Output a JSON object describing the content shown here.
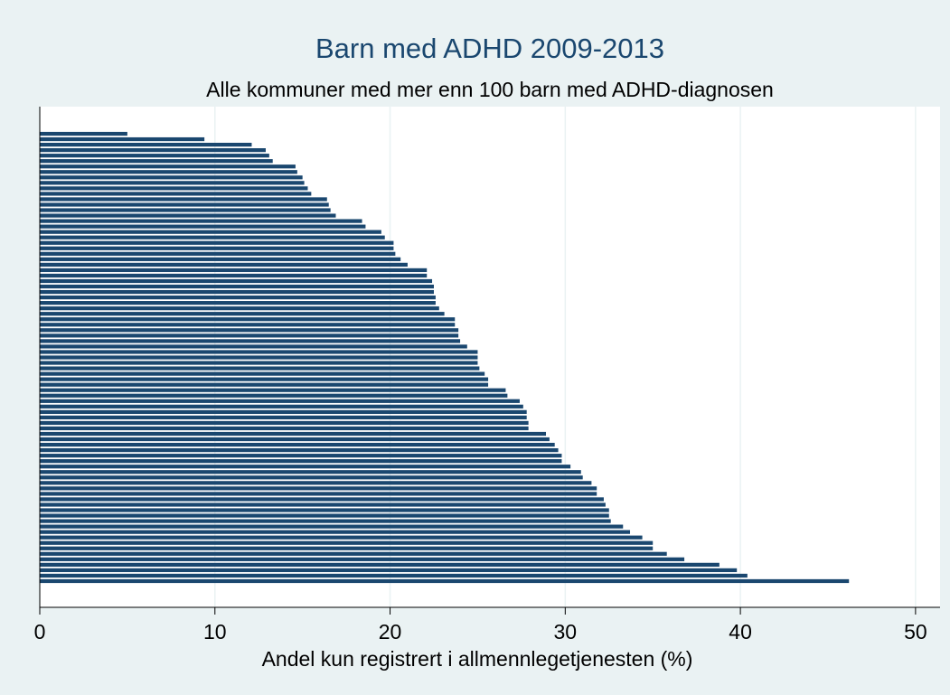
{
  "chart_data": {
    "type": "barh",
    "title": "Barn med ADHD 2009-2013",
    "subtitle": "Alle kommuner med mer enn 100 barn med ADHD-diagnosen",
    "x_label": "Andel kun registrert i allmennlegetjenesten (%)",
    "categories": [
      null,
      null,
      null,
      null,
      null,
      null,
      null,
      null,
      null,
      null,
      null,
      null,
      null,
      null,
      null,
      null,
      null,
      null,
      null,
      null,
      null,
      null,
      null,
      null,
      null,
      null,
      null,
      null,
      null,
      null,
      null,
      null,
      null,
      null,
      null,
      null,
      null,
      null,
      null,
      null,
      null,
      null,
      null,
      null,
      null,
      null,
      null,
      null,
      null,
      null,
      null,
      null,
      null,
      null,
      null,
      null,
      null,
      null,
      null,
      null,
      null,
      null,
      null,
      null,
      null,
      null,
      null,
      null,
      null,
      null,
      null,
      null,
      null,
      null,
      null,
      null,
      null,
      null,
      null,
      null,
      null,
      null,
      null
    ],
    "values": [
      5.0,
      9.4,
      12.1,
      12.9,
      13.1,
      13.3,
      14.6,
      14.7,
      15.0,
      15.1,
      15.3,
      15.5,
      16.4,
      16.5,
      16.6,
      16.9,
      18.4,
      18.6,
      19.5,
      19.7,
      20.2,
      20.2,
      20.3,
      20.6,
      21.0,
      22.1,
      22.1,
      22.4,
      22.5,
      22.5,
      22.6,
      22.6,
      22.8,
      23.1,
      23.7,
      23.7,
      23.9,
      23.9,
      24.0,
      24.4,
      25.0,
      25.0,
      25.0,
      25.1,
      25.4,
      25.6,
      25.6,
      26.6,
      26.7,
      27.4,
      27.6,
      27.8,
      27.8,
      27.9,
      27.9,
      28.9,
      29.1,
      29.4,
      29.6,
      29.8,
      29.8,
      30.3,
      30.9,
      31.0,
      31.5,
      31.8,
      31.8,
      32.2,
      32.3,
      32.5,
      32.5,
      32.6,
      33.3,
      33.7,
      34.4,
      35.0,
      35.0,
      35.8,
      36.8,
      38.8,
      39.8,
      40.4,
      46.2
    ],
    "color": "#1a476f",
    "xlim": [
      0,
      51.4
    ],
    "xticks": [
      0,
      10,
      20,
      30,
      40,
      50
    ],
    "grid": true
  }
}
